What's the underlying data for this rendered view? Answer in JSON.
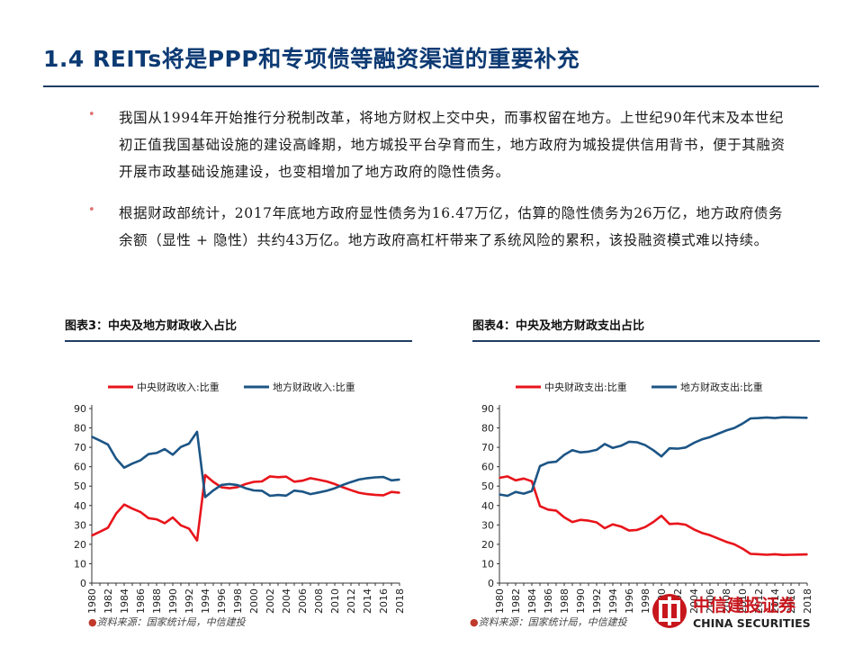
{
  "header": {
    "title": "1.4 REITs将是PPP和专项债等融资渠道的重要补充"
  },
  "bullets": [
    "我国从1994年开始推行分税制改革，将地方财权上交中央，而事权留在地方。上世纪90年代末及本世纪初正值我国基础设施的建设高峰期，地方城投平台孕育而生，地方政府为城投提供信用背书，便于其融资开展市政基础设施建设，也变相增加了地方政府的隐性债务。",
    "根据财政部统计，2017年底地方政府显性债务为16.47万亿，估算的隐性债务为26万亿，地方政府债务余额（显性 + 隐性）共约43万亿。地方政府高杠杆带来了系统风险的累积，该投融资模式难以持续。"
  ],
  "bullet_marker": "•",
  "colors": {
    "red": "#e8141b",
    "blue": "#1c5585",
    "title": "#0c3a73"
  },
  "charts": {
    "left": {
      "title": "图表3：中央及地方财政收入占比",
      "source": "资料来源：国家统计局，中信建投"
    },
    "right": {
      "title": "图表4：中央及地方财政支出占比",
      "source": "资料来源：国家统计局，中信建投"
    }
  },
  "logo": {
    "cn": "中信建投证券",
    "en": "CHINA SECURITIES",
    "icon": "citic-logo-icon"
  },
  "chart_data": [
    {
      "type": "line",
      "ylim": [
        0,
        90
      ],
      "yticks": [
        0,
        10,
        20,
        30,
        40,
        50,
        60,
        70,
        80,
        90
      ],
      "x": [
        1980,
        1981,
        1982,
        1983,
        1984,
        1985,
        1986,
        1987,
        1988,
        1989,
        1990,
        1991,
        1992,
        1993,
        1994,
        1995,
        1996,
        1997,
        1998,
        1999,
        2000,
        2001,
        2002,
        2003,
        2004,
        2005,
        2006,
        2007,
        2008,
        2009,
        2010,
        2011,
        2012,
        2013,
        2014,
        2015,
        2016,
        2017,
        2018
      ],
      "xticks": [
        "1980",
        "1982",
        "1984",
        "1986",
        "1988",
        "1990",
        "1992",
        "1994",
        "1996",
        "1998",
        "2000",
        "2002",
        "2004",
        "2006",
        "2008",
        "2010",
        "2012",
        "2014",
        "2016",
        "2018"
      ],
      "series": [
        {
          "name": "中央财政收入:比重",
          "color": "#e8141b",
          "values": [
            24.5,
            26.5,
            28.6,
            35.8,
            40.5,
            38.4,
            36.7,
            33.5,
            32.9,
            30.9,
            33.8,
            29.8,
            28.1,
            22.0,
            55.7,
            52.2,
            49.4,
            48.9,
            49.5,
            51.1,
            52.2,
            52.4,
            55.0,
            54.6,
            54.9,
            52.3,
            52.8,
            54.1,
            53.3,
            52.4,
            51.1,
            49.4,
            47.9,
            46.6,
            45.9,
            45.5,
            45.3,
            47.0,
            46.6
          ]
        },
        {
          "name": "地方财政收入:比重",
          "color": "#1c5585",
          "values": [
            75.5,
            73.5,
            71.4,
            64.2,
            59.5,
            61.6,
            63.3,
            66.5,
            67.1,
            69.1,
            66.2,
            70.2,
            71.9,
            78.0,
            44.3,
            47.8,
            50.6,
            51.1,
            50.5,
            48.9,
            47.8,
            47.6,
            45.0,
            45.4,
            45.1,
            47.7,
            47.2,
            45.9,
            46.7,
            47.6,
            48.9,
            50.6,
            52.1,
            53.4,
            54.1,
            54.5,
            54.7,
            53.0,
            53.4
          ]
        }
      ]
    },
    {
      "type": "line",
      "ylim": [
        0,
        90
      ],
      "yticks": [
        0,
        10,
        20,
        30,
        40,
        50,
        60,
        70,
        80,
        90
      ],
      "x": [
        1980,
        1981,
        1982,
        1983,
        1984,
        1985,
        1986,
        1987,
        1988,
        1989,
        1990,
        1991,
        1992,
        1993,
        1994,
        1995,
        1996,
        1997,
        1998,
        1999,
        2000,
        2001,
        2002,
        2003,
        2004,
        2005,
        2006,
        2007,
        2008,
        2009,
        2010,
        2011,
        2012,
        2013,
        2014,
        2015,
        2016,
        2017,
        2018
      ],
      "xticks": [
        "1980",
        "1982",
        "1984",
        "1986",
        "1988",
        "1990",
        "1992",
        "1994",
        "1996",
        "1998",
        "2000",
        "2002",
        "2004",
        "2006",
        "2008",
        "2010",
        "2012",
        "2014",
        "2016",
        "2018"
      ],
      "series": [
        {
          "name": "中央财政支出:比重",
          "color": "#e8141b",
          "values": [
            54.3,
            55.0,
            53.0,
            53.9,
            52.5,
            39.7,
            37.9,
            37.4,
            33.9,
            31.5,
            32.6,
            32.2,
            31.3,
            28.3,
            30.3,
            29.2,
            27.1,
            27.4,
            28.9,
            31.5,
            34.7,
            30.5,
            30.7,
            30.1,
            27.7,
            25.9,
            24.7,
            23.0,
            21.3,
            20.0,
            17.8,
            15.1,
            14.9,
            14.6,
            14.9,
            14.5,
            14.6,
            14.7,
            14.8
          ]
        },
        {
          "name": "地方财政支出:比重",
          "color": "#1c5585",
          "values": [
            45.7,
            45.0,
            47.0,
            46.1,
            47.5,
            60.3,
            62.1,
            62.6,
            66.1,
            68.5,
            67.4,
            67.8,
            68.7,
            71.7,
            69.7,
            70.8,
            72.9,
            72.6,
            71.1,
            68.5,
            65.3,
            69.5,
            69.3,
            69.9,
            72.3,
            74.1,
            75.3,
            77.0,
            78.7,
            80.0,
            82.2,
            84.9,
            85.1,
            85.4,
            85.1,
            85.5,
            85.4,
            85.3,
            85.2
          ]
        }
      ]
    }
  ]
}
